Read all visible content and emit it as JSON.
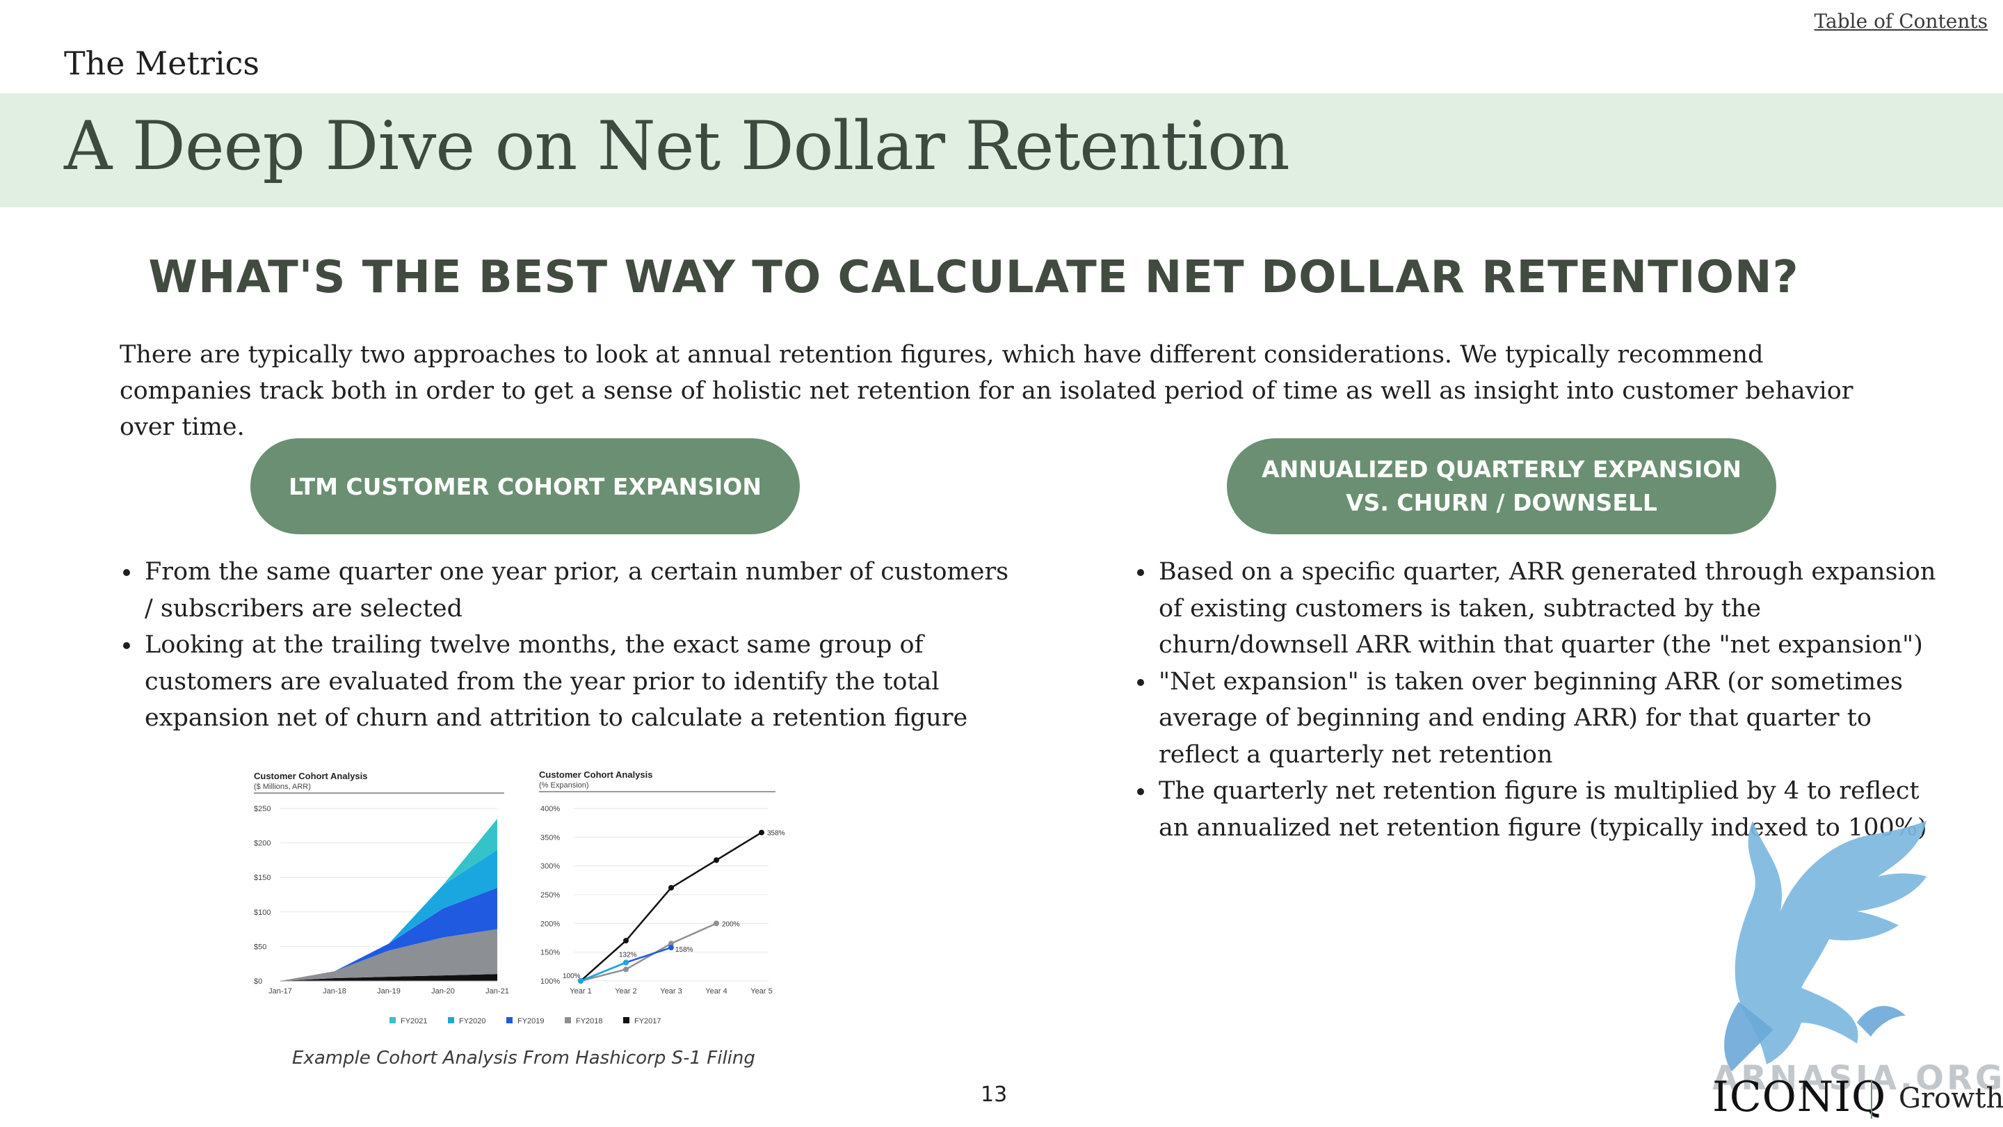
{
  "header": {
    "toc_link": "Table of Contents",
    "section_label": "The Metrics",
    "title": "A Deep Dive on Net Dollar Retention"
  },
  "question": "WHAT'S THE BEST WAY TO CALCULATE NET DOLLAR RETENTION?",
  "intro": "There are typically two approaches to look at annual retention figures, which have different considerations. We typically recommend companies track both in order to get a sense of holistic net retention for an isolated period of time as well as insight into customer behavior over time.",
  "left": {
    "pill": "LTM CUSTOMER COHORT EXPANSION",
    "bullets": [
      "From the same quarter one year prior, a certain number of customers / subscribers are selected",
      "Looking at the trailing twelve months, the exact same group of customers are evaluated from the year prior to identify the total expansion net of churn and attrition to calculate a retention figure"
    ],
    "caption": "Example Cohort Analysis From Hashicorp S-1 Filing"
  },
  "right": {
    "pill": "ANNUALIZED QUARTERLY EXPANSION VS. CHURN / DOWNSELL",
    "bullets": [
      "Based on a specific quarter, ARR generated through expansion of existing customers is taken, subtracted by the churn/downsell ARR within that quarter (the \"net expansion\")",
      "\"Net expansion\" is taken over beginning ARR (or sometimes average of beginning and ending ARR) for that quarter to reflect a quarterly net retention",
      "The quarterly net retention figure is multiplied by 4 to reflect an annualized net retention figure (typically indexed to 100%)"
    ]
  },
  "chart_data": [
    {
      "type": "area",
      "title": "Customer Cohort Analysis",
      "subtitle": "($ Millions, ARR)",
      "x": [
        "Jan-17",
        "Jan-18",
        "Jan-19",
        "Jan-20",
        "Jan-21"
      ],
      "ylim": [
        0,
        250
      ],
      "yticks": [
        "$0",
        "$50",
        "$100",
        "$150",
        "$200",
        "$250"
      ],
      "series": [
        {
          "name": "FY2017",
          "color": "#111111",
          "values": [
            0,
            4,
            6,
            8,
            10
          ]
        },
        {
          "name": "FY2018",
          "color": "#8c8f94",
          "values": [
            0,
            10,
            38,
            55,
            65
          ]
        },
        {
          "name": "FY2019",
          "color": "#1f5ae0",
          "values": [
            0,
            0,
            10,
            42,
            60
          ]
        },
        {
          "name": "FY2020",
          "color": "#1aa7e0",
          "values": [
            0,
            0,
            0,
            34,
            55
          ]
        },
        {
          "name": "FY2021",
          "color": "#35c3c9",
          "values": [
            0,
            0,
            0,
            0,
            45
          ]
        }
      ],
      "legend": "bottom"
    },
    {
      "type": "line",
      "title": "Customer Cohort Analysis",
      "subtitle": "(% Expansion)",
      "x": [
        "Year 1",
        "Year 2",
        "Year 3",
        "Year 4",
        "Year 5"
      ],
      "ylim": [
        100,
        400
      ],
      "yticks": [
        "100%",
        "150%",
        "200%",
        "250%",
        "300%",
        "350%",
        "400%"
      ],
      "series": [
        {
          "name": "FY2017",
          "color": "#111111",
          "values": [
            100,
            170,
            262,
            310,
            358
          ]
        },
        {
          "name": "FY2018",
          "color": "#8c8f94",
          "values": [
            100,
            120,
            165,
            200,
            null
          ]
        },
        {
          "name": "FY2019",
          "color": "#1f5ae0",
          "values": [
            100,
            132,
            158,
            null,
            null
          ]
        },
        {
          "name": "FY2020",
          "color": "#1aa7e0",
          "values": [
            100,
            132,
            null,
            null,
            null
          ]
        }
      ],
      "data_labels": [
        "100%",
        "132%",
        "158%",
        "200%",
        "358%"
      ]
    }
  ],
  "legend_items": [
    {
      "name": "FY2021",
      "color": "#35c3c9"
    },
    {
      "name": "FY2020",
      "color": "#1aa7e0"
    },
    {
      "name": "FY2019",
      "color": "#1f5ae0"
    },
    {
      "name": "FY2018",
      "color": "#8c8f94"
    },
    {
      "name": "FY2017",
      "color": "#111111"
    }
  ],
  "page_number": "13",
  "brand": {
    "name": "ICONIQ",
    "sub": "Growth",
    "watermark": "ARNASIA.ORG"
  }
}
